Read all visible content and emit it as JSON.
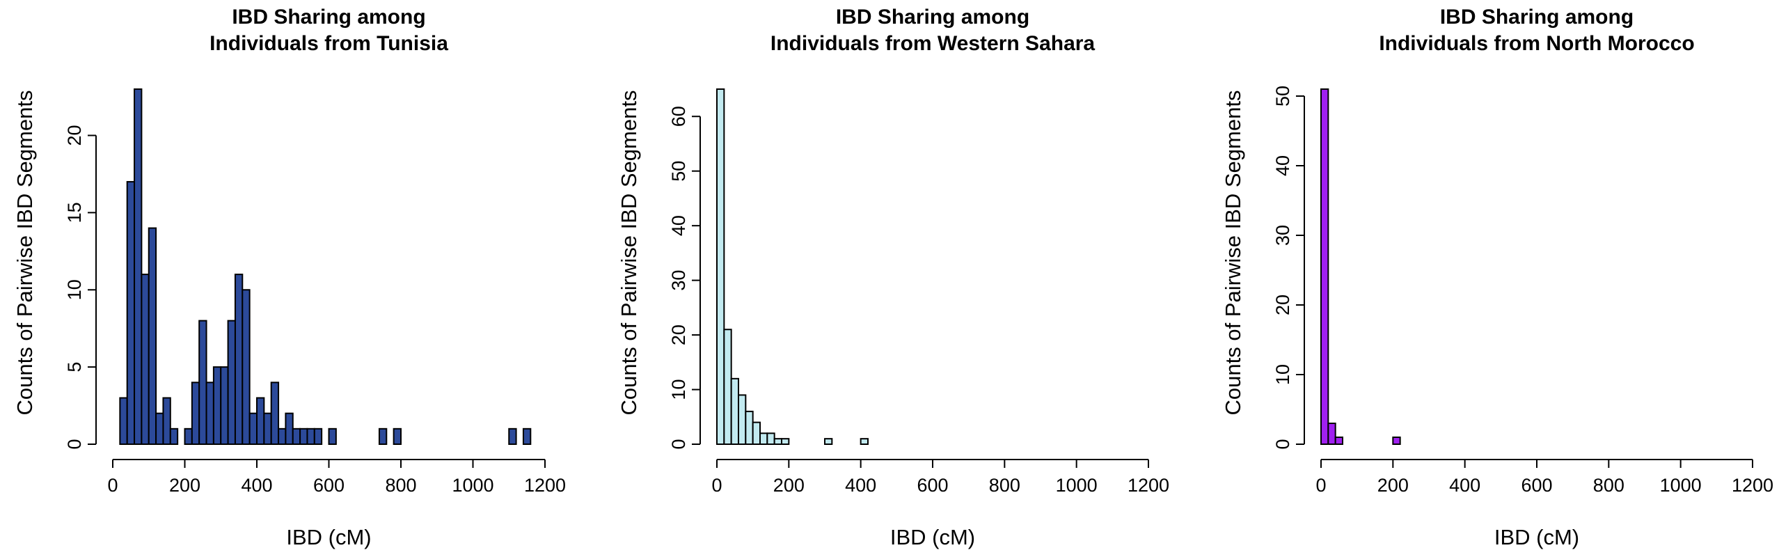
{
  "chart_data": [
    {
      "type": "bar",
      "title": "IBD Sharing among\nIndividuals from Tunisia",
      "xlabel": "IBD (cM)",
      "ylabel": "Counts of Pairwise IBD Segments",
      "xlim": [
        0,
        1200
      ],
      "ylim": [
        0,
        23
      ],
      "xticks": [
        0,
        200,
        400,
        600,
        800,
        1000,
        1200
      ],
      "yticks": [
        0,
        5,
        10,
        15,
        20
      ],
      "bin_width": 20,
      "bin_start": 20,
      "bar_color": "#2c4a9a",
      "values": [
        3,
        17,
        23,
        11,
        14,
        2,
        3,
        1,
        0,
        1,
        4,
        8,
        4,
        5,
        5,
        8,
        11,
        10,
        2,
        3,
        2,
        4,
        1,
        2,
        1,
        1,
        1,
        1,
        0,
        1,
        0,
        0,
        0,
        0,
        0,
        0,
        1,
        0,
        1,
        0,
        0,
        0,
        0,
        0,
        0,
        0,
        0,
        0,
        0,
        0,
        0,
        0,
        0,
        0,
        1,
        0,
        1
      ]
    },
    {
      "type": "bar",
      "title": "IBD Sharing among\nIndividuals from Western Sahara",
      "xlabel": "IBD (cM)",
      "ylabel": "Counts of Pairwise IBD Segments",
      "xlim": [
        0,
        1200
      ],
      "ylim": [
        0,
        65
      ],
      "xticks": [
        0,
        200,
        400,
        600,
        800,
        1000,
        1200
      ],
      "yticks": [
        0,
        10,
        20,
        30,
        40,
        50,
        60
      ],
      "bin_width": 20,
      "bin_start": 0,
      "bar_color": "#c2eaf0",
      "values": [
        65,
        21,
        12,
        9,
        6,
        4,
        2,
        2,
        1,
        1,
        0,
        0,
        0,
        0,
        0,
        1,
        0,
        0,
        0,
        0,
        1
      ]
    },
    {
      "type": "bar",
      "title": "IBD Sharing among\nIndividuals from North Morocco",
      "xlabel": "IBD (cM)",
      "ylabel": "Counts of Pairwise IBD Segments",
      "xlim": [
        0,
        1200
      ],
      "ylim": [
        0,
        51
      ],
      "xticks": [
        0,
        200,
        400,
        600,
        800,
        1000,
        1200
      ],
      "yticks": [
        0,
        10,
        20,
        30,
        40,
        50
      ],
      "bin_width": 20,
      "bin_start": 0,
      "bar_color": "#a020f0",
      "values": [
        51,
        3,
        1,
        0,
        0,
        0,
        0,
        0,
        0,
        0,
        1
      ]
    }
  ]
}
